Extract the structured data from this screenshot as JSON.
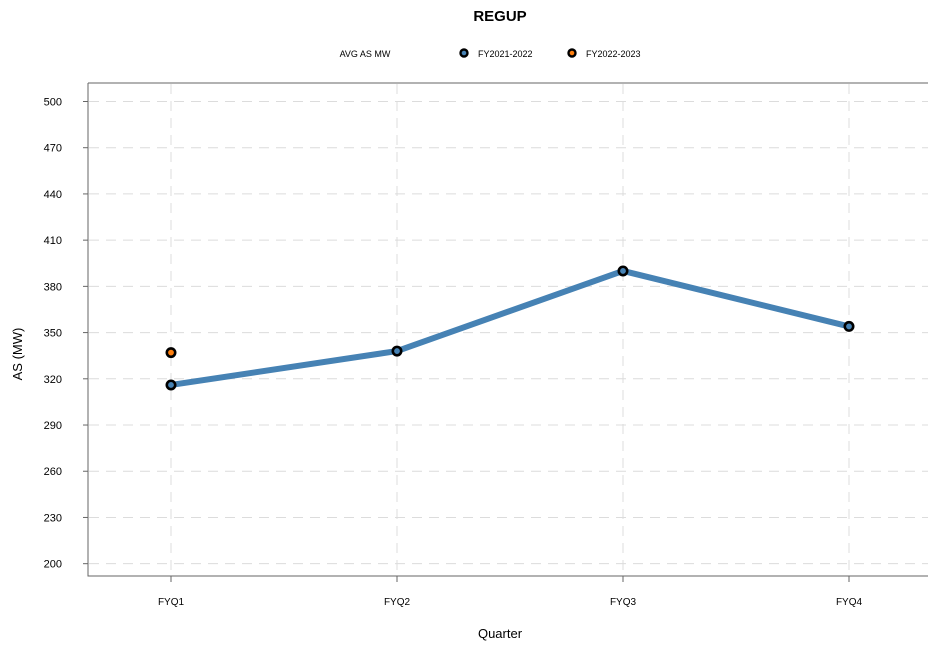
{
  "chart_data": {
    "type": "line",
    "title": "REGUP",
    "legend_title": "AVG AS MW",
    "xlabel": "Quarter",
    "ylabel": "AS (MW)",
    "categories": [
      "FYQ1",
      "FYQ2",
      "FYQ3",
      "FYQ4"
    ],
    "yticks": [
      200,
      230,
      260,
      290,
      320,
      350,
      380,
      410,
      440,
      470,
      500
    ],
    "ylim": [
      192,
      512
    ],
    "grid": true,
    "legend_position": "top-center",
    "series": [
      {
        "name": "FY2021-2022",
        "values": [
          316,
          338,
          390,
          354
        ],
        "line_color": "#4682b4",
        "marker_fill": "#4682b4",
        "show_line": true
      },
      {
        "name": "FY2022-2023",
        "values": [
          337,
          null,
          null,
          null
        ],
        "line_color": "#ff7f0e",
        "marker_fill": "#ff7f0e",
        "show_line": false
      }
    ]
  }
}
